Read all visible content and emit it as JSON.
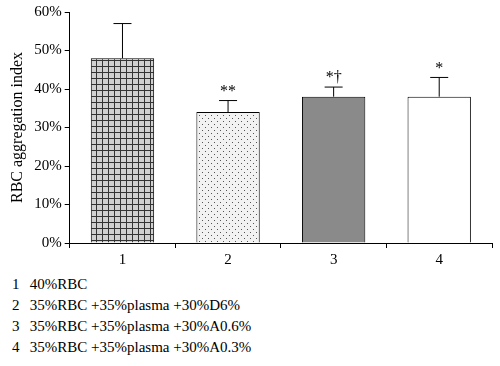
{
  "chart_data": {
    "type": "bar",
    "y_label": "RBC aggregation index",
    "categories": [
      "1",
      "2",
      "3",
      "4"
    ],
    "values": [
      48,
      34,
      38,
      38
    ],
    "errors": [
      9,
      3,
      2.5,
      5
    ],
    "colors": [
      "#d0d0d0",
      "#f2f2f2",
      "#8a8a8a",
      "#ffffff"
    ],
    "ylim": [
      0,
      60
    ],
    "yticks": [
      {
        "value": 0,
        "label": "0%"
      },
      {
        "value": 10,
        "label": "10%"
      },
      {
        "value": 20,
        "label": "20%"
      },
      {
        "value": 30,
        "label": "30%"
      },
      {
        "value": 40,
        "label": "40%"
      },
      {
        "value": 50,
        "label": "50%"
      },
      {
        "value": 60,
        "label": "60%"
      }
    ],
    "grid": false,
    "annotations": [
      {
        "category": "2",
        "text": "**"
      },
      {
        "category": "3",
        "text": "*†"
      },
      {
        "category": "4",
        "text": "*"
      }
    ],
    "descriptions": [
      "40%RBC",
      "35%RBC +35%plasma +30%D6%",
      "35%RBC +35%plasma +30%A0.6%",
      "35%RBC +35%plasma +30%A0.3%"
    ]
  }
}
